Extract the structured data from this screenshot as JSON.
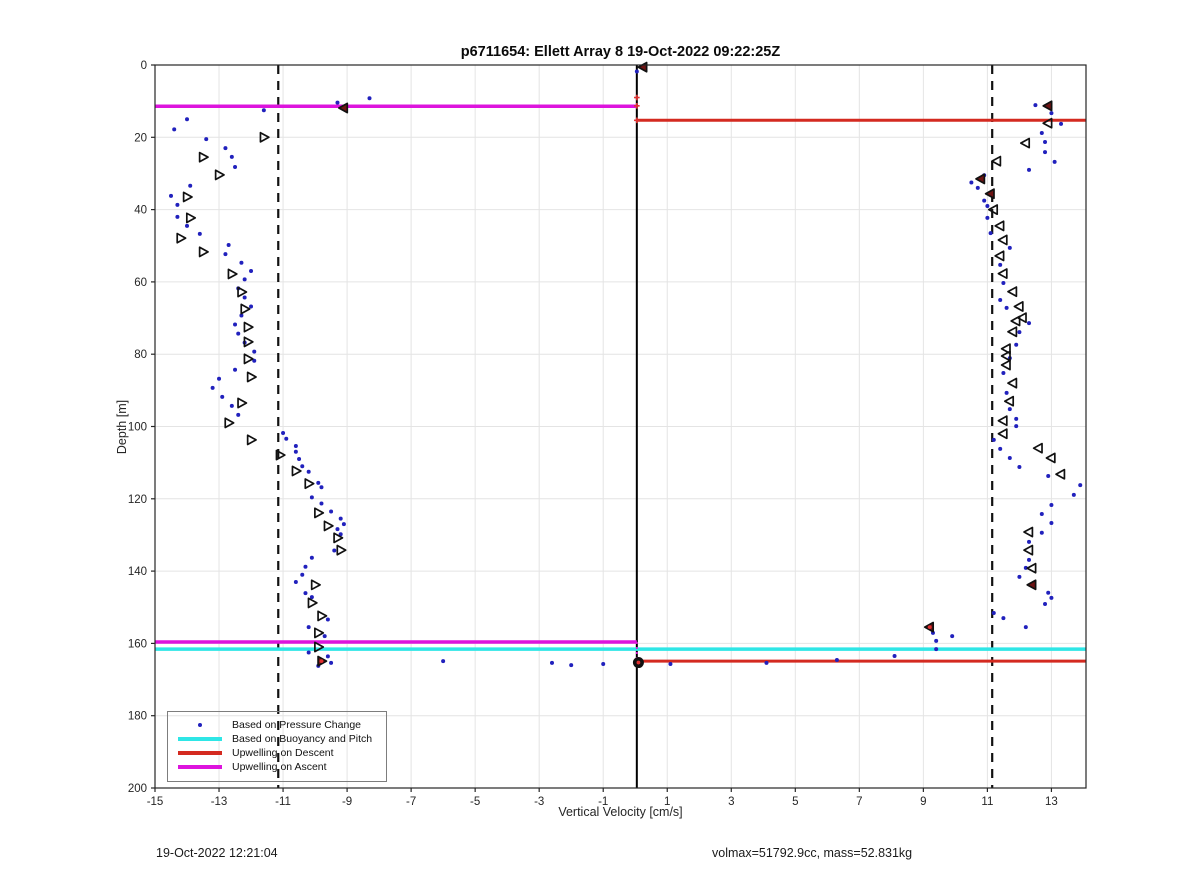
{
  "annotations": {
    "timestamp": "19-Oct-2022 12:21:04",
    "stats": "volmax=51792.9cc, mass=52.831kg"
  },
  "chart_data": {
    "type": "scatter",
    "title": "p6711654: Ellett Array 8 19-Oct-2022 09:22:25Z",
    "xlabel": "Vertical Velocity [cm/s]",
    "ylabel": "Depth [m]",
    "xlim": [
      -15,
      14.08
    ],
    "ylim": [
      0,
      200
    ],
    "y_inverted": true,
    "grid": true,
    "xticks": [
      -15,
      -13,
      -11,
      -9,
      -7,
      -5,
      -3,
      -1,
      1,
      3,
      5,
      7,
      9,
      11,
      13
    ],
    "yticks": [
      0,
      20,
      40,
      60,
      80,
      100,
      120,
      140,
      160,
      180,
      200
    ],
    "colors": {
      "pressure_dots": "#2121bd",
      "buoyancy_cyan": "#2ee6e6",
      "descent_red": "#d42a20",
      "ascent_magenta": "#dd14dd",
      "marker_fill_maroon": "#6e1414",
      "grid": "#e4e4e4",
      "axis": "#262626"
    },
    "reference_lines": {
      "vertical": [
        {
          "name": "zero-velocity-line",
          "x": 0.05,
          "style": "solid",
          "color": "#000000",
          "width": 2
        },
        {
          "name": "descent-threshold-line",
          "x": -11.15,
          "style": "dashed",
          "color": "#111111",
          "width": 2.2
        },
        {
          "name": "ascent-threshold-line",
          "x": 11.15,
          "style": "dashed",
          "color": "#111111",
          "width": 2.2
        }
      ],
      "horizontal": [
        {
          "name": "upwelling-ascent-top",
          "depth": 11.4,
          "x_from": -15,
          "x_to": 0.05,
          "color": "#dd14dd",
          "width": 3.5
        },
        {
          "name": "upwelling-descent-top",
          "depth": 15.3,
          "x_from": 0.05,
          "x_to": 14.08,
          "color": "#d42a20",
          "width": 3
        },
        {
          "name": "upwelling-ascent-bottom",
          "depth": 159.6,
          "x_from": -15,
          "x_to": 0.05,
          "color": "#dd14dd",
          "width": 3.5
        },
        {
          "name": "buoyancy-pitch-line",
          "depth": 161.6,
          "x_from": -15,
          "x_to": 14.08,
          "color": "#2ee6e6",
          "width": 3.5
        },
        {
          "name": "upwelling-descent-bottom",
          "depth": 164.9,
          "x_from": 0.05,
          "x_to": 14.08,
          "color": "#d42a20",
          "width": 3
        }
      ],
      "connectors": [
        {
          "name": "ascent-bottom-connector",
          "x": 0.05,
          "d_from": 159.6,
          "d_to": 165.0,
          "color": "#dd14dd",
          "width": 1.6,
          "style": "dotted"
        }
      ]
    },
    "series": [
      {
        "name": "Based on Pressure Change",
        "marker": "dot",
        "color": "#2121bd",
        "points": [
          [
            -8.3,
            9.2
          ],
          [
            -9.3,
            10.4
          ],
          [
            -11.6,
            12.5
          ],
          [
            -14.0,
            15.0
          ],
          [
            -14.4,
            17.8
          ],
          [
            -13.4,
            20.5
          ],
          [
            -12.8,
            23.0
          ],
          [
            -12.6,
            25.4
          ],
          [
            -12.5,
            28.2
          ],
          [
            -13.9,
            33.4
          ],
          [
            -14.5,
            36.2
          ],
          [
            -14.3,
            38.7
          ],
          [
            -14.3,
            42.0
          ],
          [
            -14.0,
            44.5
          ],
          [
            -13.6,
            46.7
          ],
          [
            -12.7,
            49.8
          ],
          [
            -12.8,
            52.3
          ],
          [
            -12.3,
            54.7
          ],
          [
            -12.0,
            57.0
          ],
          [
            -12.2,
            59.3
          ],
          [
            -12.4,
            61.8
          ],
          [
            -12.2,
            64.3
          ],
          [
            -12.0,
            66.8
          ],
          [
            -12.3,
            69.3
          ],
          [
            -12.5,
            71.8
          ],
          [
            -12.4,
            74.3
          ],
          [
            -12.2,
            76.8
          ],
          [
            -11.9,
            79.3
          ],
          [
            -11.9,
            81.8
          ],
          [
            -12.5,
            84.3
          ],
          [
            -13.0,
            86.8
          ],
          [
            -13.2,
            89.3
          ],
          [
            -12.9,
            91.8
          ],
          [
            -12.6,
            94.3
          ],
          [
            -12.4,
            96.8
          ],
          [
            -11.0,
            101.8
          ],
          [
            -10.9,
            103.4
          ],
          [
            -10.6,
            105.4
          ],
          [
            -10.6,
            107.0
          ],
          [
            -10.5,
            109.0
          ],
          [
            -10.4,
            111.0
          ],
          [
            -10.2,
            112.5
          ],
          [
            -9.9,
            115.6
          ],
          [
            -9.8,
            116.8
          ],
          [
            -10.1,
            119.6
          ],
          [
            -9.8,
            121.3
          ],
          [
            -9.5,
            123.5
          ],
          [
            -9.2,
            125.5
          ],
          [
            -9.1,
            127.0
          ],
          [
            -9.3,
            128.4
          ],
          [
            -9.2,
            129.8
          ],
          [
            -9.4,
            134.3
          ],
          [
            -10.1,
            136.3
          ],
          [
            -10.3,
            138.8
          ],
          [
            -10.4,
            141.0
          ],
          [
            -10.6,
            143.0
          ],
          [
            -10.3,
            146.1
          ],
          [
            -10.1,
            147.2
          ],
          [
            -9.6,
            153.4
          ],
          [
            -10.2,
            155.5
          ],
          [
            -9.7,
            158.0
          ],
          [
            -10.2,
            162.5
          ],
          [
            -9.6,
            163.6
          ],
          [
            -9.9,
            166.2
          ],
          [
            -9.5,
            165.4
          ],
          [
            -6.0,
            164.9
          ],
          [
            -2.6,
            165.4
          ],
          [
            -2.0,
            166.0
          ],
          [
            -1.0,
            165.7
          ],
          [
            1.1,
            165.7
          ],
          [
            4.1,
            165.4
          ],
          [
            6.3,
            164.6
          ],
          [
            8.1,
            163.5
          ],
          [
            9.3,
            157.1
          ],
          [
            9.4,
            159.3
          ],
          [
            9.4,
            161.6
          ],
          [
            9.9,
            158.0
          ],
          [
            11.2,
            151.6
          ],
          [
            11.5,
            153.0
          ],
          [
            12.2,
            155.5
          ],
          [
            12.8,
            149.1
          ],
          [
            13.0,
            147.4
          ],
          [
            12.9,
            146.0
          ],
          [
            12.5,
            11.1
          ],
          [
            13.0,
            13.3
          ],
          [
            13.3,
            16.3
          ],
          [
            12.7,
            18.8
          ],
          [
            12.8,
            21.3
          ],
          [
            12.8,
            24.1
          ],
          [
            13.1,
            26.8
          ],
          [
            12.3,
            29.0
          ],
          [
            10.9,
            30.5
          ],
          [
            10.5,
            32.5
          ],
          [
            10.7,
            34.0
          ],
          [
            10.9,
            37.5
          ],
          [
            11.0,
            39.0
          ],
          [
            11.0,
            42.3
          ],
          [
            11.1,
            46.5
          ],
          [
            11.7,
            50.6
          ],
          [
            11.4,
            55.3
          ],
          [
            11.5,
            60.3
          ],
          [
            11.4,
            65.0
          ],
          [
            11.6,
            67.2
          ],
          [
            12.3,
            71.4
          ],
          [
            12.0,
            73.9
          ],
          [
            11.9,
            77.4
          ],
          [
            11.7,
            81.1
          ],
          [
            11.5,
            85.2
          ],
          [
            11.6,
            90.7
          ],
          [
            11.7,
            95.2
          ],
          [
            11.9,
            97.9
          ],
          [
            11.9,
            99.9
          ],
          [
            11.2,
            103.7
          ],
          [
            11.4,
            106.2
          ],
          [
            11.7,
            108.7
          ],
          [
            12.0,
            111.2
          ],
          [
            12.9,
            113.7
          ],
          [
            13.9,
            116.2
          ],
          [
            13.7,
            118.9
          ],
          [
            13.0,
            121.7
          ],
          [
            12.7,
            124.2
          ],
          [
            13.0,
            126.7
          ],
          [
            12.7,
            129.4
          ],
          [
            12.3,
            131.9
          ],
          [
            12.3,
            136.9
          ],
          [
            12.2,
            139.1
          ],
          [
            12.0,
            141.6
          ],
          [
            0.05,
            1.8
          ]
        ]
      },
      {
        "name": "Descent buoyancy-pitch estimates",
        "marker": "triangle-right",
        "color": "#111111",
        "fill": "none",
        "points": [
          [
            -11.6,
            20.0
          ],
          [
            -13.5,
            25.5
          ],
          [
            -13.0,
            30.4
          ],
          [
            -14.0,
            36.5
          ],
          [
            -13.9,
            42.3
          ],
          [
            -14.2,
            47.9
          ],
          [
            -13.5,
            51.7
          ],
          [
            -12.6,
            57.8
          ],
          [
            -12.3,
            62.8
          ],
          [
            -12.2,
            67.5
          ],
          [
            -12.1,
            72.5
          ],
          [
            -12.1,
            76.6
          ],
          [
            -12.1,
            81.3
          ],
          [
            -12.0,
            86.3
          ],
          [
            -12.3,
            93.5
          ],
          [
            -12.7,
            99.0
          ],
          [
            -12.0,
            103.7
          ],
          [
            -11.1,
            107.9
          ],
          [
            -10.6,
            112.3
          ],
          [
            -10.2,
            115.8
          ],
          [
            -9.9,
            123.9
          ],
          [
            -9.6,
            127.5
          ],
          [
            -9.3,
            130.8
          ],
          [
            -9.2,
            134.2
          ],
          [
            -10.0,
            143.8
          ],
          [
            -10.1,
            148.8
          ],
          [
            -9.8,
            152.4
          ],
          [
            -9.9,
            157.1
          ],
          [
            -9.9,
            161.0
          ]
        ]
      },
      {
        "name": "Ascent buoyancy-pitch estimates",
        "marker": "triangle-left",
        "color": "#111111",
        "fill": "none",
        "points": [
          [
            12.9,
            16.1
          ],
          [
            12.2,
            21.6
          ],
          [
            11.3,
            26.6
          ],
          [
            11.2,
            40.0
          ],
          [
            11.4,
            44.5
          ],
          [
            11.5,
            48.4
          ],
          [
            11.4,
            52.8
          ],
          [
            11.5,
            57.7
          ],
          [
            11.8,
            62.7
          ],
          [
            12.0,
            66.8
          ],
          [
            12.1,
            69.9
          ],
          [
            11.9,
            70.8
          ],
          [
            11.8,
            73.8
          ],
          [
            11.6,
            78.5
          ],
          [
            11.6,
            80.5
          ],
          [
            11.6,
            83.0
          ],
          [
            11.8,
            88.0
          ],
          [
            11.7,
            93.0
          ],
          [
            11.5,
            98.4
          ],
          [
            11.5,
            102.0
          ],
          [
            12.6,
            106.0
          ],
          [
            13.0,
            108.7
          ],
          [
            13.3,
            113.2
          ],
          [
            12.3,
            129.2
          ],
          [
            12.3,
            134.2
          ],
          [
            12.4,
            139.2
          ]
        ]
      }
    ],
    "special_markers": [
      {
        "name": "ascent-start-marker",
        "shape": "triangle-left",
        "point": [
          -9.1,
          11.9
        ],
        "fill": "#6e1414"
      },
      {
        "name": "surface-marker",
        "shape": "triangle-left",
        "point": [
          0.25,
          0.6
        ],
        "fill": "#6e1414"
      },
      {
        "name": "ascent-top-marker",
        "shape": "triangle-left",
        "point": [
          12.9,
          11.3
        ],
        "fill": "#6e1414"
      },
      {
        "name": "ascent-marker-31m",
        "shape": "triangle-left",
        "point": [
          10.8,
          31.5
        ],
        "fill": "#6e1414"
      },
      {
        "name": "ascent-marker-35m",
        "shape": "triangle-left",
        "point": [
          11.1,
          35.6
        ],
        "fill": "#6e1414"
      },
      {
        "name": "ascent-marker-143m",
        "shape": "triangle-left",
        "point": [
          12.4,
          143.8
        ],
        "fill": "#6e1414"
      },
      {
        "name": "ascent-bottom-marker",
        "shape": "triangle-left",
        "point": [
          9.2,
          155.5
        ],
        "fill": "#6e1414",
        "center": "#e03030"
      },
      {
        "name": "descent-bottom-marker",
        "shape": "triangle-right",
        "point": [
          -9.8,
          164.9
        ],
        "fill": "#6e1414",
        "center": "#e03030"
      },
      {
        "name": "apogee-marker",
        "shape": "circle",
        "point": [
          0.1,
          165.3
        ],
        "fill": "#111111",
        "center": "#e03030"
      },
      {
        "name": "zero-line-tick-1",
        "shape": "plus",
        "point": [
          0.05,
          9.0
        ],
        "color": "#e03030"
      },
      {
        "name": "zero-line-tick-2",
        "shape": "plus",
        "point": [
          0.05,
          11.3
        ],
        "color": "#e03030"
      },
      {
        "name": "zero-line-tick-3",
        "shape": "plus",
        "point": [
          0.05,
          15.3
        ],
        "color": "#e03030"
      }
    ],
    "legend": {
      "position": "bottom-left",
      "entries": [
        {
          "marker": "dot",
          "color": "#2121bd",
          "label": "Based on Pressure Change"
        },
        {
          "marker": "line",
          "color": "#2ee6e6",
          "label": "Based on Buoyancy and Pitch"
        },
        {
          "marker": "line",
          "color": "#d42a20",
          "label": "Upwelling on Descent"
        },
        {
          "marker": "line",
          "color": "#dd14dd",
          "label": "Upwelling on Ascent"
        }
      ]
    }
  }
}
